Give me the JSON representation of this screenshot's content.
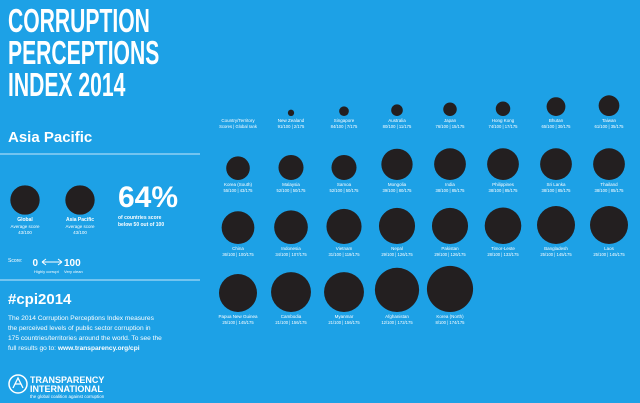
{
  "title_lines": [
    "CORRUPTION",
    "PERCEPTIONS",
    "INDEX 2014"
  ],
  "region": "Asia Pacific",
  "averages": [
    {
      "name": "Global",
      "label": "Average score",
      "score": 43,
      "score_label": "43/100"
    },
    {
      "name": "Asia Pacific",
      "label": "Average score",
      "score": 43,
      "score_label": "43/100"
    }
  ],
  "stat": {
    "value": "64%",
    "caption_lines": [
      "of countries score",
      "below 50 out of 100"
    ]
  },
  "scale": {
    "label": "Score:",
    "low": "0",
    "high": "100",
    "low_label": "Highly corrupt",
    "high_label": "Very clean"
  },
  "hashtag": "#cpi2014",
  "description_lines": [
    "The 2014 Corruption Perceptions Index measures",
    "the perceived levels of public sector corruption in",
    "175 countries/territories around the world. To see the",
    "full results go to:"
  ],
  "url": "www.transparency.org/cpi",
  "logo": {
    "name_lines": [
      "TRANSPARENCY",
      "INTERNATIONAL"
    ],
    "tagline": "the global coalition against corruption"
  },
  "grid_header": {
    "name": "Country/Territory",
    "sub": "Scores | Global rank"
  },
  "countries": [
    {
      "name": "New Zealand",
      "score": 91,
      "label": "91/100 | 2/175"
    },
    {
      "name": "Singapore",
      "score": 84,
      "label": "84/100 | 7/175"
    },
    {
      "name": "Australia",
      "score": 80,
      "label": "80/100 | 11/175"
    },
    {
      "name": "Japan",
      "score": 76,
      "label": "76/100 | 15/175"
    },
    {
      "name": "Hong Kong",
      "score": 74,
      "label": "74/100 | 17/175"
    },
    {
      "name": "Bhutan",
      "score": 65,
      "label": "65/100 | 30/175"
    },
    {
      "name": "Taiwan",
      "score": 61,
      "label": "61/100 | 35/175"
    },
    {
      "name": "Korea (South)",
      "score": 55,
      "label": "55/100 | 43/175"
    },
    {
      "name": "Malaysia",
      "score": 52,
      "label": "52/100 | 50/175"
    },
    {
      "name": "Samoa",
      "score": 52,
      "label": "52/100 | 50/175"
    },
    {
      "name": "Mongolia",
      "score": 39,
      "label": "39/100 | 80/175"
    },
    {
      "name": "India",
      "score": 38,
      "label": "38/100 | 85/175"
    },
    {
      "name": "Philippines",
      "score": 38,
      "label": "38/100 | 85/175"
    },
    {
      "name": "Sri Lanka",
      "score": 38,
      "label": "38/100 | 85/175"
    },
    {
      "name": "Thailand",
      "score": 38,
      "label": "38/100 | 85/175"
    },
    {
      "name": "China",
      "score": 36,
      "label": "36/100 | 100/175"
    },
    {
      "name": "Indonesia",
      "score": 34,
      "label": "34/100 | 107/175"
    },
    {
      "name": "Vietnam",
      "score": 31,
      "label": "31/100 | 119/175"
    },
    {
      "name": "Nepal",
      "score": 29,
      "label": "29/100 | 126/175"
    },
    {
      "name": "Pakistan",
      "score": 29,
      "label": "29/100 | 126/175"
    },
    {
      "name": "Timor-Leste",
      "score": 28,
      "label": "28/100 | 133/175"
    },
    {
      "name": "Bangladesh",
      "score": 25,
      "label": "25/100 | 145/175"
    },
    {
      "name": "Laos",
      "score": 25,
      "label": "25/100 | 145/175"
    },
    {
      "name": "Papua New Guinea",
      "score": 25,
      "label": "25/100 | 145/175"
    },
    {
      "name": "Cambodia",
      "score": 21,
      "label": "21/100 | 156/175"
    },
    {
      "name": "Myanmar",
      "score": 21,
      "label": "21/100 | 156/175"
    },
    {
      "name": "Afghanistan",
      "score": 12,
      "label": "12/100 | 172/175"
    },
    {
      "name": "Korea (North)",
      "score": 8,
      "label": "8/100 | 174/175"
    }
  ]
}
